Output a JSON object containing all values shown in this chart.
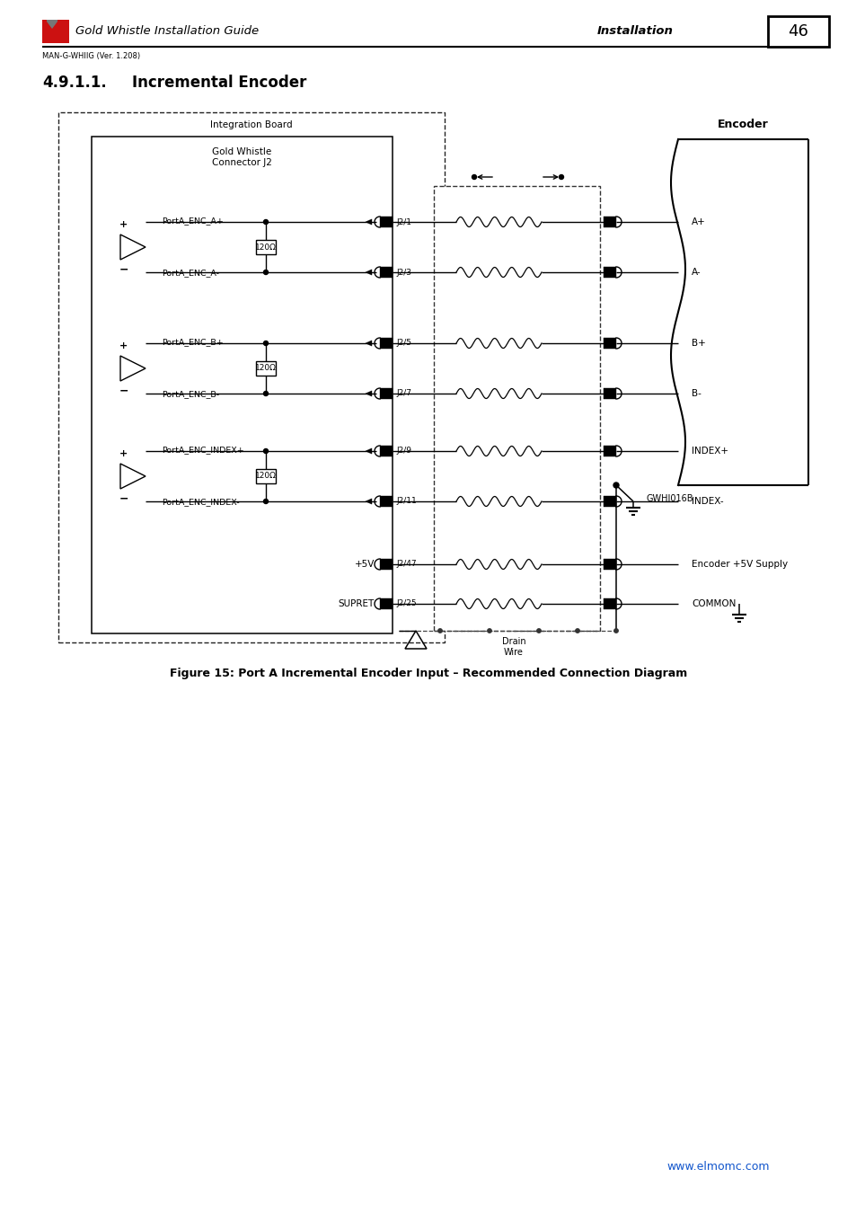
{
  "header_title": "Gold Whistle Installation Guide",
  "header_right": "Installation",
  "header_page": "46",
  "header_sub": "MAN-G-WHIIG (Ver. 1.208)",
  "section_num": "4.9.1.1.",
  "section_name": "Incremental Encoder",
  "integration_board_label": "Integration Board",
  "connector_label": "Gold Whistle\nConnector J2",
  "encoder_label": "Encoder",
  "signals": [
    {
      "label_plus": "PortA_ENC_A+",
      "label_minus": "PortA_ENC_A-",
      "j_plus": "J2/1",
      "j_minus": "J2/3",
      "enc_plus": "A+",
      "enc_minus": "A-"
    },
    {
      "label_plus": "PortA_ENC_B+",
      "label_minus": "PortA_ENC_B-",
      "j_plus": "J2/5",
      "j_minus": "J2/7",
      "enc_plus": "B+",
      "enc_minus": "B-"
    },
    {
      "label_plus": "PortA_ENC_INDEX+",
      "label_minus": "PortA_ENC_INDEX-",
      "j_plus": "J2/9",
      "j_minus": "J2/11",
      "enc_plus": "INDEX+",
      "enc_minus": "INDEX-"
    }
  ],
  "power_j": "J2/47",
  "power_label": "+5V",
  "power_enc": "Encoder +5V Supply",
  "common_j": "J2/25",
  "common_label": "SUPRET",
  "common_enc": "COMMON",
  "drain_label": "Drain\nWire",
  "gwhi_label": "GWHI016B",
  "resistor_label": "120Ω",
  "figure_caption": "Figure 15: Port A Incremental Encoder Input – Recommended Connection Diagram",
  "website": "www.elmomc.com"
}
